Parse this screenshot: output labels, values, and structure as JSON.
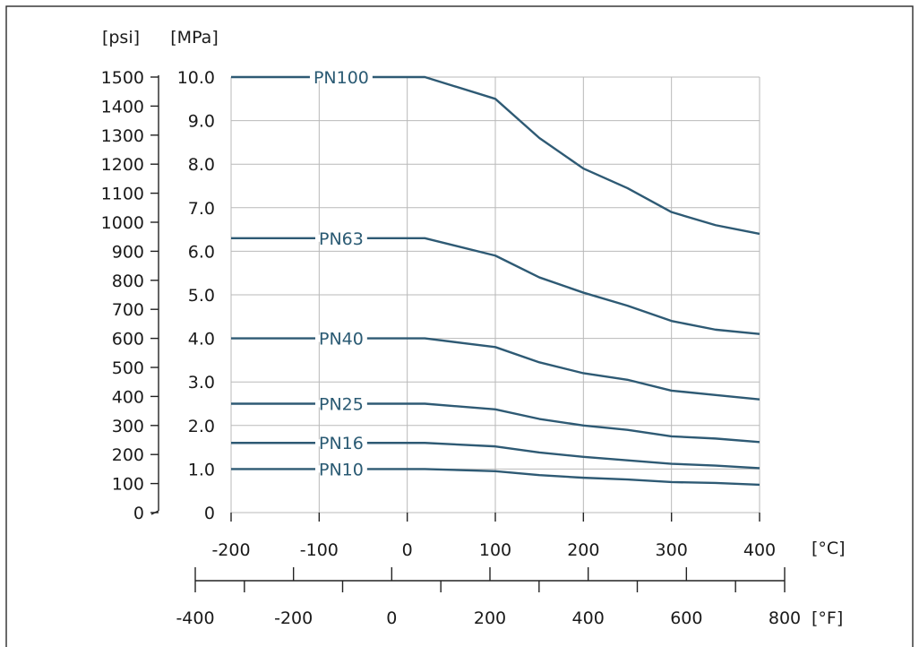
{
  "chart_data": {
    "type": "line",
    "title": "",
    "x_unit_label": "[°C]",
    "x2_unit_label": "[°F]",
    "y_unit_label": "[MPa]",
    "y2_unit_label": "[psi]",
    "xlim": [
      -200,
      400
    ],
    "ylim": [
      0,
      10
    ],
    "x2lim": [
      -400,
      800
    ],
    "y2lim": [
      0,
      1500
    ],
    "x_ticks": [
      -200,
      -100,
      0,
      100,
      200,
      300,
      400
    ],
    "x_tick_labels": [
      "-200",
      "-100",
      "0",
      "100",
      "200",
      "300",
      "400"
    ],
    "x2_ticks": [
      -400,
      -200,
      0,
      200,
      400,
      600,
      800
    ],
    "x2_tick_labels": [
      "-400",
      "-200",
      "0",
      "200",
      "400",
      "600",
      "800"
    ],
    "x2_minor_ticks": [
      -300,
      -100,
      100,
      300,
      500,
      700
    ],
    "y_ticks": [
      0,
      1,
      2,
      3,
      4,
      5,
      6,
      7,
      8,
      9,
      10
    ],
    "y_tick_labels": [
      "0",
      "1.0",
      "2.0",
      "3.0",
      "4.0",
      "5.0",
      "6.0",
      "7.0",
      "8.0",
      "9.0",
      "10.0"
    ],
    "y2_ticks": [
      0,
      100,
      200,
      300,
      400,
      500,
      600,
      700,
      800,
      900,
      1000,
      1100,
      1200,
      1300,
      1400,
      1500
    ],
    "y2_tick_labels": [
      "0",
      "100",
      "200",
      "300",
      "400",
      "500",
      "600",
      "700",
      "800",
      "900",
      "1000",
      "1100",
      "1200",
      "1300",
      "1400",
      "1500"
    ],
    "grid": true,
    "line_color": "#2e5a74",
    "label_color": "#2a5a73",
    "series": [
      {
        "name": "PN100",
        "label_at": -75,
        "x": [
          -200,
          20,
          100,
          150,
          200,
          250,
          300,
          350,
          400
        ],
        "y": [
          10.0,
          10.0,
          9.5,
          8.6,
          7.9,
          7.45,
          6.9,
          6.6,
          6.4
        ]
      },
      {
        "name": "PN63",
        "label_at": -75,
        "x": [
          -200,
          20,
          100,
          150,
          200,
          250,
          300,
          350,
          400
        ],
        "y": [
          6.3,
          6.3,
          5.9,
          5.4,
          5.05,
          4.75,
          4.4,
          4.2,
          4.1
        ]
      },
      {
        "name": "PN40",
        "label_at": -75,
        "x": [
          -200,
          20,
          100,
          150,
          200,
          250,
          300,
          350,
          400
        ],
        "y": [
          4.0,
          4.0,
          3.8,
          3.45,
          3.2,
          3.05,
          2.8,
          2.7,
          2.6
        ]
      },
      {
        "name": "PN25",
        "label_at": -75,
        "x": [
          -200,
          20,
          100,
          150,
          200,
          250,
          300,
          350,
          400
        ],
        "y": [
          2.5,
          2.5,
          2.37,
          2.15,
          2.0,
          1.9,
          1.75,
          1.7,
          1.62
        ]
      },
      {
        "name": "PN16",
        "label_at": -75,
        "x": [
          -200,
          20,
          100,
          150,
          200,
          250,
          300,
          350,
          400
        ],
        "y": [
          1.6,
          1.6,
          1.52,
          1.38,
          1.28,
          1.2,
          1.12,
          1.08,
          1.02
        ]
      },
      {
        "name": "PN10",
        "label_at": -75,
        "x": [
          -200,
          20,
          100,
          150,
          200,
          250,
          300,
          350,
          400
        ],
        "y": [
          1.0,
          1.0,
          0.95,
          0.86,
          0.8,
          0.76,
          0.7,
          0.68,
          0.64
        ]
      }
    ]
  }
}
